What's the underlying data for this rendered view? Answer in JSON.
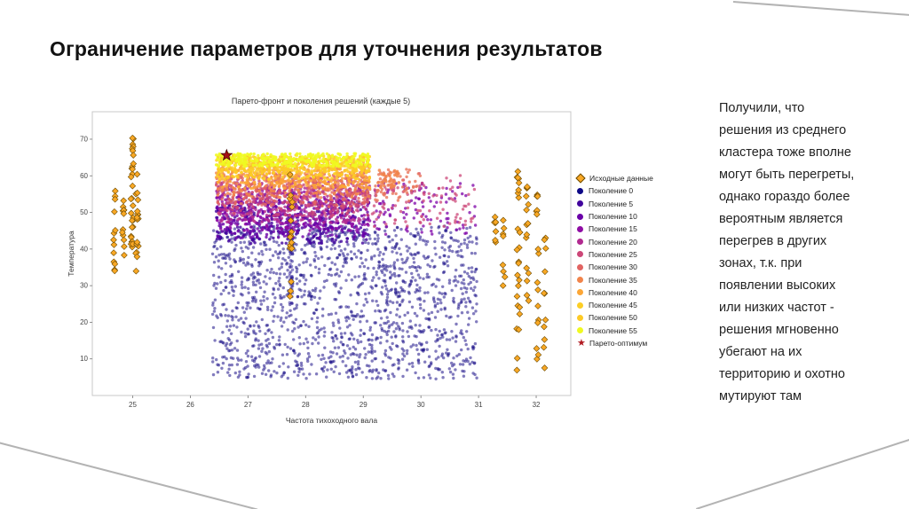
{
  "slide": {
    "title": "Ограничение параметров для уточнения результатов"
  },
  "note": {
    "lines": [
      "Получили, что",
      "решения из среднего",
      "кластера тоже вполне",
      "могут быть перегреты,",
      "однако гораздо более",
      "вероятным является",
      "перегрев в других",
      "зонах, т.к. при",
      "появлении высоких",
      "или низких частот -",
      "решения мгновенно",
      "убегают на их",
      "территорию и охотно",
      "мутируют там"
    ]
  },
  "chart_data": {
    "type": "scatter",
    "title": "Парето-фронт и поколения решений (каждые 5)",
    "xlabel": "Частота тихоходного вала",
    "ylabel": "Температура",
    "xlim": [
      24.3,
      32.6
    ],
    "ylim": [
      0,
      77.5
    ],
    "xticks": [
      25,
      26,
      27,
      28,
      29,
      30,
      31,
      32
    ],
    "yticks": [
      10,
      20,
      30,
      40,
      50,
      60,
      70
    ],
    "grid": false,
    "legend_position": "right",
    "legend": [
      {
        "label": "Исходные данные",
        "marker": "diamond",
        "color": "#f9a825"
      },
      {
        "label": "Поколение 0",
        "marker": "circle",
        "color": "#0d0887"
      },
      {
        "label": "Поколение 5",
        "marker": "circle",
        "color": "#41049d"
      },
      {
        "label": "Поколение 10",
        "marker": "circle",
        "color": "#6a00a8"
      },
      {
        "label": "Поколение 15",
        "marker": "circle",
        "color": "#8f0da4"
      },
      {
        "label": "Поколение 20",
        "marker": "circle",
        "color": "#b12a90"
      },
      {
        "label": "Поколение 25",
        "marker": "circle",
        "color": "#cc4778"
      },
      {
        "label": "Поколение 30",
        "marker": "circle",
        "color": "#e16462"
      },
      {
        "label": "Поколение 35",
        "marker": "circle",
        "color": "#f1844b"
      },
      {
        "label": "Поколение 40",
        "marker": "circle",
        "color": "#fca636"
      },
      {
        "label": "Поколение 45",
        "marker": "circle",
        "color": "#fcce25"
      },
      {
        "label": "Поколение 50",
        "marker": "circle",
        "color": "#fdca26"
      },
      {
        "label": "Поколение 55",
        "marker": "circle",
        "color": "#f0f921"
      },
      {
        "label": "Парето-оптимум",
        "marker": "star",
        "color": "#b11a21"
      }
    ],
    "pareto_optimum": {
      "x": 26.63,
      "y": 65.6,
      "color": "#a50f15",
      "edge": "#3a0000"
    },
    "clusters": [
      {
        "name": "generation-0-cloud",
        "marker": "circle",
        "color": "#1b1189",
        "alpha": 0.55,
        "size": 1.7,
        "count": 1500,
        "x": [
          26.38,
          30.97
        ],
        "y": [
          4.5,
          46.5
        ]
      },
      {
        "name": "generation-0-column",
        "marker": "circle",
        "color": "#2a1a96",
        "alpha": 0.5,
        "size": 1.7,
        "count": 70,
        "x": [
          27.72,
          27.78
        ],
        "y": [
          25,
          60
        ]
      },
      {
        "name": "generation-5-band",
        "marker": "circle",
        "color": "#41049d",
        "alpha": 0.8,
        "size": 1.7,
        "count": 300,
        "x": [
          26.45,
          29.12
        ],
        "y": [
          41.5,
          53
        ]
      },
      {
        "name": "generation-10-band",
        "marker": "circle",
        "color": "#6a00a8",
        "alpha": 0.8,
        "size": 1.7,
        "count": 290,
        "x": [
          26.45,
          29.12
        ],
        "y": [
          43,
          55
        ]
      },
      {
        "name": "generation-15-band",
        "marker": "circle",
        "color": "#8f0da4",
        "alpha": 0.8,
        "size": 1.7,
        "count": 280,
        "x": [
          26.45,
          29.12
        ],
        "y": [
          45,
          57
        ]
      },
      {
        "name": "generation-20-band",
        "marker": "circle",
        "color": "#b12a90",
        "alpha": 0.8,
        "size": 1.7,
        "count": 270,
        "x": [
          26.45,
          29.12
        ],
        "y": [
          47,
          58.5
        ]
      },
      {
        "name": "generation-25-band",
        "marker": "circle",
        "color": "#cc4778",
        "alpha": 0.8,
        "size": 1.7,
        "count": 260,
        "x": [
          26.45,
          29.12
        ],
        "y": [
          49,
          60
        ]
      },
      {
        "name": "generation-30-band",
        "marker": "circle",
        "color": "#e16462",
        "alpha": 0.8,
        "size": 1.7,
        "count": 250,
        "x": [
          26.45,
          29.12
        ],
        "y": [
          51.5,
          61
        ]
      },
      {
        "name": "generation-35-band",
        "marker": "circle",
        "color": "#f1844b",
        "alpha": 0.8,
        "size": 1.7,
        "count": 250,
        "x": [
          26.45,
          29.12
        ],
        "y": [
          54,
          62.5
        ]
      },
      {
        "name": "generation-40-band",
        "marker": "circle",
        "color": "#fca636",
        "alpha": 0.85,
        "size": 1.7,
        "count": 270,
        "x": [
          26.45,
          29.12
        ],
        "y": [
          56.5,
          64
        ]
      },
      {
        "name": "generation-45-band",
        "marker": "circle",
        "color": "#fcce25",
        "alpha": 0.85,
        "size": 1.7,
        "count": 280,
        "x": [
          26.45,
          29.12
        ],
        "y": [
          59,
          65
        ]
      },
      {
        "name": "generation-50-band",
        "marker": "circle",
        "color": "#fdca26",
        "alpha": 0.85,
        "size": 1.7,
        "count": 290,
        "x": [
          26.45,
          29.12
        ],
        "y": [
          61,
          65.7
        ]
      },
      {
        "name": "generation-55-band",
        "marker": "circle",
        "color": "#f0f921",
        "alpha": 0.9,
        "size": 1.7,
        "count": 300,
        "x": [
          26.45,
          29.12
        ],
        "y": [
          62.5,
          66.1
        ]
      },
      {
        "name": "right-cloud-purple",
        "marker": "circle",
        "color": "#7e03a8",
        "alpha": 0.75,
        "size": 1.7,
        "count": 100,
        "x": [
          29.15,
          30.95
        ],
        "y": [
          44,
          58
        ]
      },
      {
        "name": "right-cloud-magenta",
        "marker": "circle",
        "color": "#cc4778",
        "alpha": 0.75,
        "size": 1.7,
        "count": 100,
        "x": [
          29.15,
          30.95
        ],
        "y": [
          46,
          61
        ]
      },
      {
        "name": "right-cloud-salmon",
        "marker": "circle",
        "color": "#e8745a",
        "alpha": 0.8,
        "size": 1.7,
        "count": 60,
        "x": [
          29.2,
          30.0
        ],
        "y": [
          53,
          62
        ]
      },
      {
        "name": "right-clump-salmon",
        "marker": "circle",
        "color": "#f1844b",
        "alpha": 0.85,
        "size": 1.8,
        "count": 35,
        "x": [
          29.25,
          29.65
        ],
        "y": [
          56.5,
          61.5
        ]
      },
      {
        "name": "source-col-1",
        "marker": "diamond",
        "color": "#f9a825",
        "stroke": "#6b4a00",
        "alpha": 1,
        "size": 3.4,
        "count": 13,
        "x": [
          24.66,
          24.7
        ],
        "y": [
          33,
          59
        ]
      },
      {
        "name": "source-col-2",
        "marker": "diamond",
        "color": "#f9a825",
        "stroke": "#6b4a00",
        "alpha": 1,
        "size": 3.4,
        "count": 12,
        "x": [
          24.82,
          24.86
        ],
        "y": [
          36.5,
          57
        ]
      },
      {
        "name": "source-col-3",
        "marker": "diamond",
        "color": "#f9a825",
        "stroke": "#6b4a00",
        "alpha": 1,
        "size": 3.4,
        "count": 30,
        "x": [
          24.97,
          25.02
        ],
        "y": [
          39,
          73.5
        ]
      },
      {
        "name": "source-col-4",
        "marker": "diamond",
        "color": "#f9a825",
        "stroke": "#6b4a00",
        "alpha": 1,
        "size": 3.4,
        "count": 17,
        "x": [
          25.05,
          25.1
        ],
        "y": [
          33,
          63
        ]
      },
      {
        "name": "source-col-mid",
        "marker": "diamond",
        "color": "#f9a825",
        "stroke": "#6b4a00",
        "alpha": 1,
        "size": 3.4,
        "count": 13,
        "x": [
          27.72,
          27.77
        ],
        "y": [
          39,
          60.5
        ]
      },
      {
        "name": "source-col-mid-low",
        "marker": "diamond",
        "color": "#f9a825",
        "stroke": "#6b4a00",
        "alpha": 1,
        "size": 3.4,
        "count": 3,
        "x": [
          27.72,
          27.76
        ],
        "y": [
          25,
          33
        ]
      },
      {
        "name": "source-col-5",
        "marker": "diamond",
        "color": "#f9a825",
        "stroke": "#6b4a00",
        "alpha": 1,
        "size": 3.4,
        "count": 7,
        "x": [
          31.27,
          31.3
        ],
        "y": [
          41.5,
          52
        ]
      },
      {
        "name": "source-col-6",
        "marker": "diamond",
        "color": "#f9a825",
        "stroke": "#6b4a00",
        "alpha": 1,
        "size": 3.4,
        "count": 8,
        "x": [
          31.42,
          31.46
        ],
        "y": [
          27,
          50
        ]
      },
      {
        "name": "source-col-7",
        "marker": "diamond",
        "color": "#f9a825",
        "stroke": "#6b4a00",
        "alpha": 1,
        "size": 3.4,
        "count": 26,
        "x": [
          31.66,
          31.72
        ],
        "y": [
          4.5,
          62.5
        ]
      },
      {
        "name": "source-col-8",
        "marker": "diamond",
        "color": "#f9a825",
        "stroke": "#6b4a00",
        "alpha": 1,
        "size": 3.4,
        "count": 16,
        "x": [
          31.82,
          31.87
        ],
        "y": [
          25,
          58.5
        ]
      },
      {
        "name": "source-col-9",
        "marker": "diamond",
        "color": "#f9a825",
        "stroke": "#6b4a00",
        "alpha": 1,
        "size": 3.4,
        "count": 16,
        "x": [
          32.0,
          32.05
        ],
        "y": [
          6,
          55
        ]
      },
      {
        "name": "source-col-10",
        "marker": "diamond",
        "color": "#f9a825",
        "stroke": "#6b4a00",
        "alpha": 1,
        "size": 3.4,
        "count": 11,
        "x": [
          32.13,
          32.17
        ],
        "y": [
          7,
          45
        ]
      }
    ]
  }
}
